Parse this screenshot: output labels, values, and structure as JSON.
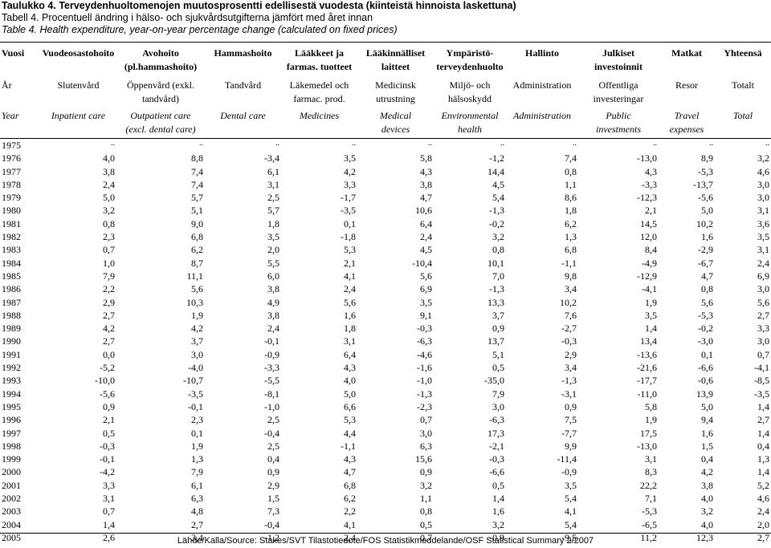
{
  "title_fi": "Taulukko 4. Terveydenhuoltomenojen muutosprosentti edellisestä vuodesta (kiinteistä hinnoista laskettuna)",
  "title_sv": "Tabell 4. Procentuell ändring i hälso- och sjukvårdsutgifterna jämfört med året innan",
  "title_en": "Table 4. Health expenditure, year-on-year percentage change (calculated on fixed prices)",
  "headers_fi": [
    [
      "Vuosi"
    ],
    [
      "Vuodeosastohoito"
    ],
    [
      "Avohoito",
      "(pl.hammashoito)"
    ],
    [
      "Hammashoito"
    ],
    [
      "Lääkkeet ja",
      "farmas. tuotteet"
    ],
    [
      "Lääkinnälliset",
      "laitteet"
    ],
    [
      "Ympäristö-",
      "terveydenhuolto"
    ],
    [
      "Hallinto"
    ],
    [
      "Julkiset",
      "investoinnit"
    ],
    [
      "Matkat"
    ],
    [
      "Yhteensä"
    ]
  ],
  "headers_sv": [
    [
      "År"
    ],
    [
      "Slutenvård"
    ],
    [
      "Öppenvård (exkl.",
      "tandvård)"
    ],
    [
      "Tandvård"
    ],
    [
      "Läkemedel och",
      "farmac. prod."
    ],
    [
      "Medicinsk",
      "utrustning"
    ],
    [
      "Miljö- och",
      "hälsoskydd"
    ],
    [
      "Administration"
    ],
    [
      "Offentliga",
      "investeringar"
    ],
    [
      "Resor"
    ],
    [
      "Totalt"
    ]
  ],
  "headers_en": [
    [
      "Year"
    ],
    [
      "Inpatient care"
    ],
    [
      "Outpatient care",
      "(excl. dental care)"
    ],
    [
      "Dental care"
    ],
    [
      "Medicines"
    ],
    [
      "Medical",
      "devices"
    ],
    [
      "Environmental",
      "health"
    ],
    [
      "Administration"
    ],
    [
      "Public",
      "investments"
    ],
    [
      "Travel",
      "expenses"
    ],
    [
      "Total"
    ]
  ],
  "rows": [
    [
      "1975",
      "..",
      "..",
      "..",
      "..",
      "..",
      "..",
      "..",
      "..",
      "..",
      ".."
    ],
    [
      "1976",
      "4,0",
      "8,8",
      "-3,4",
      "3,5",
      "5,8",
      "-1,2",
      "7,4",
      "-13,0",
      "8,9",
      "3,2"
    ],
    [
      "1977",
      "3,8",
      "7,4",
      "6,1",
      "4,2",
      "4,3",
      "14,4",
      "0,8",
      "4,3",
      "-5,3",
      "4,6"
    ],
    [
      "1978",
      "2,4",
      "7,4",
      "3,1",
      "3,3",
      "3,8",
      "4,5",
      "1,1",
      "-3,3",
      "-13,7",
      "3,0"
    ],
    [
      "1979",
      "5,0",
      "5,7",
      "2,5",
      "-1,7",
      "4,7",
      "5,4",
      "8,6",
      "-12,3",
      "-5,6",
      "3,0"
    ],
    [
      "1980",
      "3,2",
      "5,1",
      "5,7",
      "-3,5",
      "10,6",
      "-1,3",
      "1,8",
      "2,1",
      "5,0",
      "3,1"
    ],
    [
      "1981",
      "0,8",
      "9,0",
      "1,8",
      "0,1",
      "6,4",
      "-0,2",
      "6,2",
      "14,5",
      "10,2",
      "3,6"
    ],
    [
      "1982",
      "2,3",
      "6,8",
      "3,5",
      "-1,8",
      "2,4",
      "3,2",
      "1,3",
      "12,0",
      "1,6",
      "3,5"
    ],
    [
      "1983",
      "0,7",
      "6,2",
      "2,0",
      "5,3",
      "4,5",
      "0,8",
      "6,8",
      "8,4",
      "-2,9",
      "3,1"
    ],
    [
      "1984",
      "1,0",
      "8,7",
      "5,5",
      "2,1",
      "-10,4",
      "10,1",
      "-1,1",
      "-4,9",
      "-6,7",
      "2,4"
    ],
    [
      "1985",
      "7,9",
      "11,1",
      "6,0",
      "4,1",
      "5,6",
      "7,0",
      "9,8",
      "-12,9",
      "4,7",
      "6,9"
    ],
    [
      "1986",
      "2,2",
      "5,6",
      "3,8",
      "2,4",
      "6,9",
      "-1,3",
      "3,4",
      "-4,1",
      "0,8",
      "3,0"
    ],
    [
      "1987",
      "2,9",
      "10,3",
      "4,9",
      "5,6",
      "3,5",
      "13,3",
      "10,2",
      "1,9",
      "5,6",
      "5,6"
    ],
    [
      "1988",
      "2,7",
      "1,9",
      "3,8",
      "1,6",
      "9,1",
      "3,7",
      "7,6",
      "3,5",
      "-5,3",
      "2,7"
    ],
    [
      "1989",
      "4,2",
      "4,2",
      "2,4",
      "1,8",
      "-0,3",
      "0,9",
      "-2,7",
      "1,4",
      "-0,2",
      "3,3"
    ],
    [
      "1990",
      "2,7",
      "3,7",
      "-0,1",
      "3,1",
      "-6,3",
      "13,7",
      "-0,3",
      "13,4",
      "-3,0",
      "3,0"
    ],
    [
      "1991",
      "0,0",
      "3,0",
      "-0,9",
      "6,4",
      "-4,6",
      "5,1",
      "2,9",
      "-13,6",
      "0,1",
      "0,7"
    ],
    [
      "1992",
      "-5,2",
      "-4,0",
      "-3,3",
      "4,3",
      "-1,6",
      "0,5",
      "3,4",
      "-21,6",
      "-6,6",
      "-4,1"
    ],
    [
      "1993",
      "-10,0",
      "-10,7",
      "-5,5",
      "4,0",
      "-1,0",
      "-35,0",
      "-1,3",
      "-17,7",
      "-0,6",
      "-8,5"
    ],
    [
      "1994",
      "-5,6",
      "-3,5",
      "-8,1",
      "5,0",
      "-1,3",
      "7,9",
      "-3,1",
      "-11,0",
      "13,9",
      "-3,5"
    ],
    [
      "1995",
      "0,9",
      "-0,1",
      "-1,0",
      "6,6",
      "-2,3",
      "3,0",
      "0,9",
      "5,8",
      "5,0",
      "1,4"
    ],
    [
      "1996",
      "2,1",
      "2,3",
      "2,5",
      "5,3",
      "0,7",
      "-6,3",
      "7,5",
      "1,9",
      "9,4",
      "2,7"
    ],
    [
      "1997",
      "0,5",
      "0,1",
      "-0,4",
      "4,4",
      "3,0",
      "17,3",
      "-7,7",
      "17,5",
      "1,6",
      "1,4"
    ],
    [
      "1998",
      "-0,3",
      "1,9",
      "2,5",
      "-1,1",
      "6,3",
      "-2,1",
      "9,9",
      "-13,0",
      "1,5",
      "0,4"
    ],
    [
      "1999",
      "-0,1",
      "1,3",
      "0,4",
      "4,3",
      "15,6",
      "-0,3",
      "-11,4",
      "3,1",
      "0,4",
      "1,3"
    ],
    [
      "2000",
      "-4,2",
      "7,9",
      "0,9",
      "4,7",
      "0,9",
      "-6,6",
      "-0,9",
      "8,3",
      "4,2",
      "1,4"
    ],
    [
      "2001",
      "3,3",
      "6,1",
      "2,9",
      "6,8",
      "3,2",
      "0,5",
      "3,5",
      "22,2",
      "3,8",
      "5,2"
    ],
    [
      "2002",
      "3,1",
      "6,3",
      "1,5",
      "6,2",
      "1,1",
      "1,4",
      "5,4",
      "7,1",
      "4,0",
      "4,6"
    ],
    [
      "2003",
      "0,7",
      "4,8",
      "7,3",
      "2,2",
      "0,8",
      "1,6",
      "4,1",
      "-5,3",
      "3,2",
      "2,4"
    ],
    [
      "2004",
      "1,4",
      "2,7",
      "-0,4",
      "4,1",
      "0,5",
      "3,2",
      "5,4",
      "-6,5",
      "4,0",
      "2,0"
    ],
    [
      "2005",
      "2,6",
      "3,4",
      "-1,2",
      "2,4",
      "0,7",
      "-0,9",
      "-9,5",
      "11,2",
      "12,3",
      "2,7"
    ]
  ],
  "source": "Lähde/Kalla/Source: Stakes/SVT Tilastotiedote/FOS Statistikmeddelande/OSF Statistical Summary 2/2007"
}
